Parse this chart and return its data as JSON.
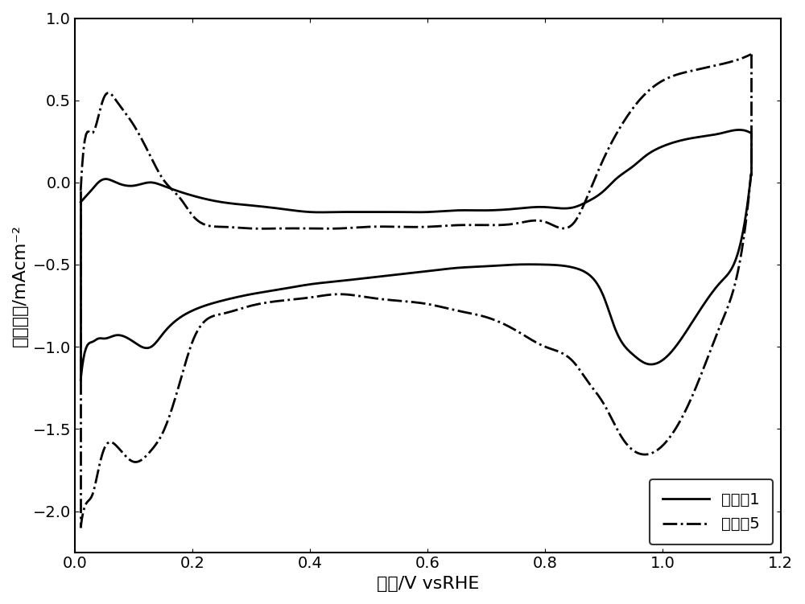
{
  "title": "",
  "xlabel": "电压/V vsRHE",
  "ylabel": "电流密度/mAcm⁻²",
  "xlim": [
    0.0,
    1.2
  ],
  "ylim": [
    -2.25,
    1.0
  ],
  "xticks": [
    0.0,
    0.2,
    0.4,
    0.6,
    0.8,
    1.0,
    1.2
  ],
  "yticks": [
    -2.0,
    -1.5,
    -1.0,
    -0.5,
    0.0,
    0.5,
    1.0
  ],
  "legend_labels": [
    "对比例1",
    "实施例5"
  ],
  "line_color": "#000000",
  "background_color": "#ffffff",
  "line_width": 2.0,
  "legend_loc": "lower right"
}
